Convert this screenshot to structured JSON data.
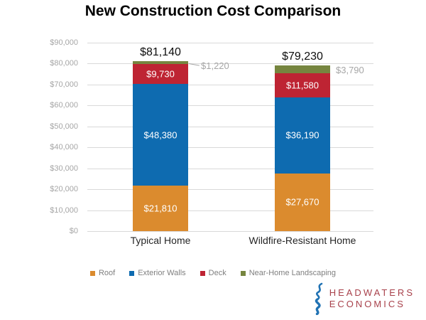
{
  "chart_data": {
    "type": "bar",
    "subtype": "stacked",
    "title": "New Construction Cost Comparison",
    "categories": [
      "Typical Home",
      "Wildfire-Resistant Home"
    ],
    "series": [
      {
        "name": "Roof",
        "color": "#DB8B2E",
        "values": [
          21810,
          27670
        ],
        "labels": [
          "$21,810",
          "$27,670"
        ],
        "label_placement": "inside"
      },
      {
        "name": "Exterior Walls",
        "color": "#0E6BB0",
        "values": [
          48380,
          36190
        ],
        "labels": [
          "$48,380",
          "$36,190"
        ],
        "label_placement": "inside"
      },
      {
        "name": "Deck",
        "color": "#BE2433",
        "values": [
          9730,
          11580
        ],
        "labels": [
          "$9,730",
          "$11,580"
        ],
        "label_placement": "inside"
      },
      {
        "name": "Near-Home Landscaping",
        "color": "#76853F",
        "values": [
          1220,
          3790
        ],
        "labels": [
          "$1,220",
          "$3,790"
        ],
        "label_placement": "outside-right",
        "callout_line": [
          true,
          false
        ]
      }
    ],
    "totals": [
      "$81,140",
      "$79,230"
    ],
    "y_axis": {
      "min": 0,
      "max": 90000,
      "tick_step": 10000,
      "tick_labels": [
        "$0",
        "$10,000",
        "$20,000",
        "$30,000",
        "$40,000",
        "$50,000",
        "$60,000",
        "$70,000",
        "$80,000",
        "$90,000"
      ]
    },
    "ylim": [
      0,
      90000
    ],
    "gridlines": true,
    "legend": {
      "position": "bottom",
      "entries": [
        "Roof",
        "Exterior Walls",
        "Deck",
        "Near-Home Landscaping"
      ]
    }
  },
  "logo": {
    "line1": "HEADWATERS",
    "line2": "ECONOMICS",
    "text_color": "#A8414B",
    "icon": "river-squiggle-icon",
    "icon_color": "#2173B4"
  }
}
